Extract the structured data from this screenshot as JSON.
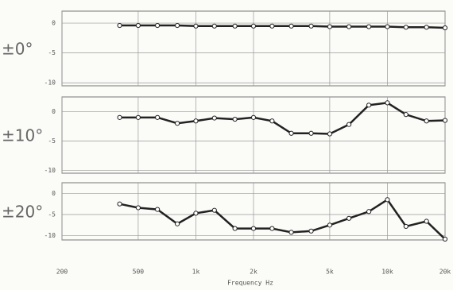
{
  "chart_data": [
    {
      "type": "line",
      "title": "±0°",
      "x": [
        400,
        500,
        630,
        800,
        1000,
        1250,
        1600,
        2000,
        2500,
        3150,
        4000,
        5000,
        6300,
        8000,
        10000,
        12500,
        16000,
        20000
      ],
      "series": [
        {
          "color": "#222222",
          "values": [
            -0.4,
            -0.4,
            -0.4,
            -0.4,
            -0.5,
            -0.5,
            -0.5,
            -0.5,
            -0.5,
            -0.5,
            -0.5,
            -0.6,
            -0.6,
            -0.6,
            -0.6,
            -0.7,
            -0.7,
            -0.8
          ]
        }
      ],
      "ylim": [
        -10.5,
        2
      ],
      "yticks": [
        0,
        -5,
        -10
      ],
      "grid": true
    },
    {
      "type": "line",
      "title": "±10°",
      "x": [
        400,
        500,
        630,
        800,
        1000,
        1250,
        1600,
        2000,
        2500,
        3150,
        4000,
        5000,
        6300,
        8000,
        10000,
        12500,
        16000,
        20000
      ],
      "series": [
        {
          "color": "#222222",
          "values": [
            -1.0,
            -1.0,
            -1.0,
            -2.0,
            -1.6,
            -1.1,
            -1.3,
            -1.0,
            -1.6,
            -3.7,
            -3.7,
            -3.8,
            -2.2,
            1.1,
            1.5,
            -0.5,
            -1.6,
            -1.5
          ]
        }
      ],
      "ylim": [
        -10.5,
        2.5
      ],
      "yticks": [
        0,
        -5,
        -10
      ],
      "grid": true
    },
    {
      "type": "line",
      "title": "±20°",
      "xlabel": "Frequency Hz",
      "x": [
        400,
        500,
        630,
        800,
        1000,
        1250,
        1600,
        2000,
        2500,
        3150,
        4000,
        5000,
        6300,
        8000,
        10000,
        12500,
        16000,
        20000
      ],
      "series": [
        {
          "color": "#222222",
          "values": [
            -2.5,
            -3.4,
            -3.8,
            -7.2,
            -4.7,
            -4.0,
            -8.3,
            -8.3,
            -8.3,
            -9.2,
            -8.9,
            -7.5,
            -5.9,
            -4.3,
            -1.5,
            -7.8,
            -6.6,
            -10.8
          ]
        }
      ],
      "xlim": [
        200,
        20000
      ],
      "log_x": true,
      "xticks": [
        {
          "value": 200,
          "label": "200"
        },
        500,
        {
          "value": 1000,
          "label": "1k"
        },
        {
          "value": 2000,
          "label": "2k"
        },
        {
          "value": 5000,
          "label": "5k"
        },
        {
          "value": 10000,
          "label": "10k"
        },
        {
          "value": 20000,
          "label": "20k"
        }
      ],
      "ylim": [
        -11,
        2.5
      ],
      "yticks": [
        0,
        -5,
        -10
      ],
      "grid": true
    }
  ]
}
